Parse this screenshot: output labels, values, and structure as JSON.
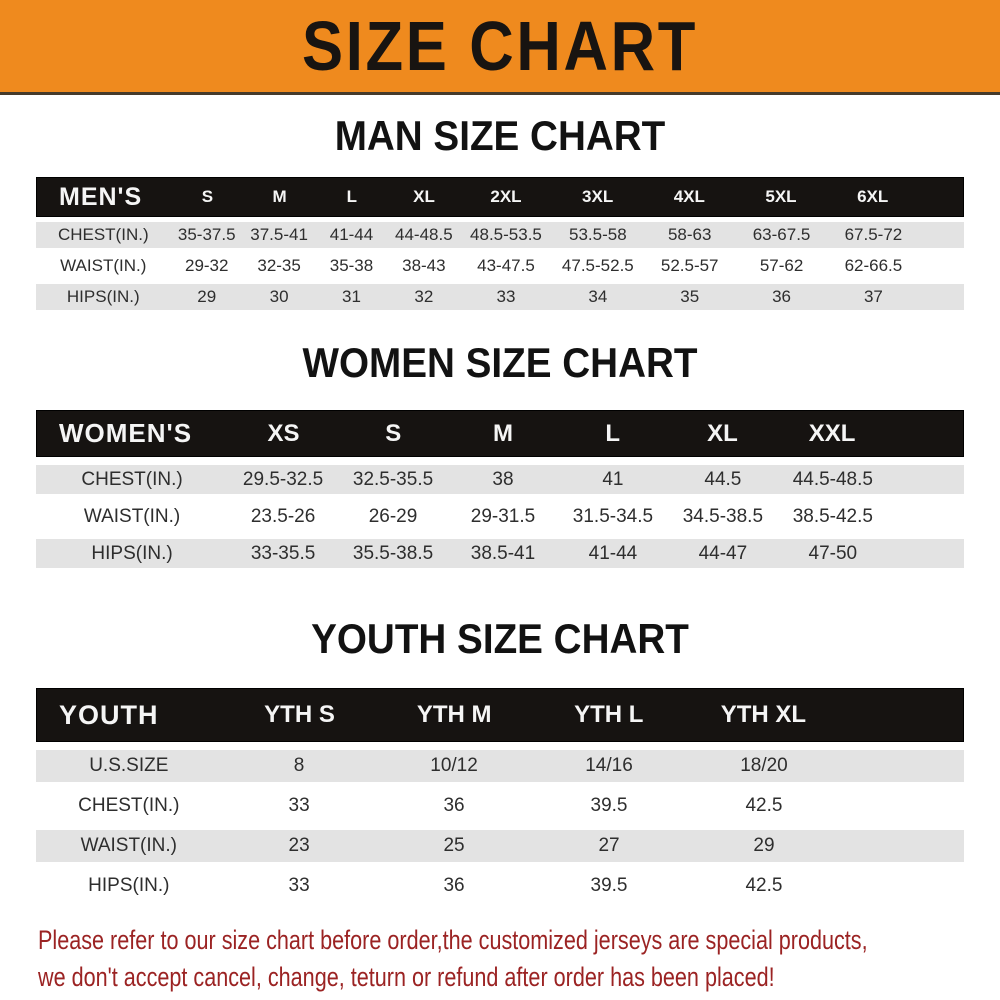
{
  "banner": {
    "title": "SIZE CHART"
  },
  "sections": [
    {
      "title": "MAN SIZE CHART",
      "header_label": "MEN'S",
      "columns": [
        "S",
        "M",
        "L",
        "XL",
        "2XL",
        "3XL",
        "4XL",
        "5XL",
        "6XL"
      ],
      "rows": [
        {
          "label": "CHEST(IN.)",
          "values": [
            "35-37.5",
            "37.5-41",
            "41-44",
            "44-48.5",
            "48.5-53.5",
            "53.5-58",
            "58-63",
            "63-67.5",
            "67.5-72"
          ]
        },
        {
          "label": "WAIST(IN.)",
          "values": [
            "29-32",
            "32-35",
            "35-38",
            "38-43",
            "43-47.5",
            "47.5-52.5",
            "52.5-57",
            "57-62",
            "62-66.5"
          ]
        },
        {
          "label": "HIPS(IN.)",
          "values": [
            "29",
            "30",
            "31",
            "32",
            "33",
            "34",
            "35",
            "36",
            "37"
          ]
        }
      ]
    },
    {
      "title": "WOMEN SIZE CHART",
      "header_label": "WOMEN'S",
      "columns": [
        "XS",
        "S",
        "M",
        "L",
        "XL",
        "XXL"
      ],
      "rows": [
        {
          "label": "CHEST(IN.)",
          "values": [
            "29.5-32.5",
            "32.5-35.5",
            "38",
            "41",
            "44.5",
            "44.5-48.5"
          ]
        },
        {
          "label": "WAIST(IN.)",
          "values": [
            "23.5-26",
            "26-29",
            "29-31.5",
            "31.5-34.5",
            "34.5-38.5",
            "38.5-42.5"
          ]
        },
        {
          "label": "HIPS(IN.)",
          "values": [
            "33-35.5",
            "35.5-38.5",
            "38.5-41",
            "41-44",
            "44-47",
            "47-50"
          ]
        }
      ]
    },
    {
      "title": "YOUTH SIZE CHART",
      "header_label": "YOUTH",
      "columns": [
        "YTH S",
        "YTH M",
        "YTH L",
        "YTH XL"
      ],
      "rows": [
        {
          "label": "U.S.SIZE",
          "values": [
            "8",
            "10/12",
            "14/16",
            "18/20"
          ]
        },
        {
          "label": "CHEST(IN.)",
          "values": [
            "33",
            "36",
            "39.5",
            "42.5"
          ]
        },
        {
          "label": "WAIST(IN.)",
          "values": [
            "23",
            "25",
            "27",
            "29"
          ]
        },
        {
          "label": "HIPS(IN.)",
          "values": [
            "33",
            "36",
            "39.5",
            "42.5"
          ]
        }
      ]
    }
  ],
  "footer": {
    "line1": "Please refer to our size chart before order,the customized jerseys are special products,",
    "line2": "we don't accept cancel, change, teturn or refund after order has been placed!"
  },
  "colors": {
    "banner_orange": "#ef8a1e",
    "header_black": "#161311",
    "row_gray": "#e3e3e3",
    "footer_red": "#9b2323"
  }
}
